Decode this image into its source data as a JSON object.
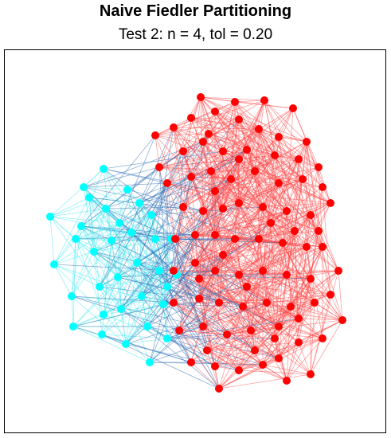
{
  "figure": {
    "title": "Naive Fiedler Partitioning",
    "subtitle": "Test 2: n = 4, tol = 0.20"
  },
  "colors": {
    "group_a_nodes": "#00FFFF",
    "group_a_edges": "#40E8F0",
    "group_b_nodes": "#FF0000",
    "group_b_edges": "#FF4040",
    "cross_edges": "#2F6FB7",
    "frame": "#000000"
  }
}
